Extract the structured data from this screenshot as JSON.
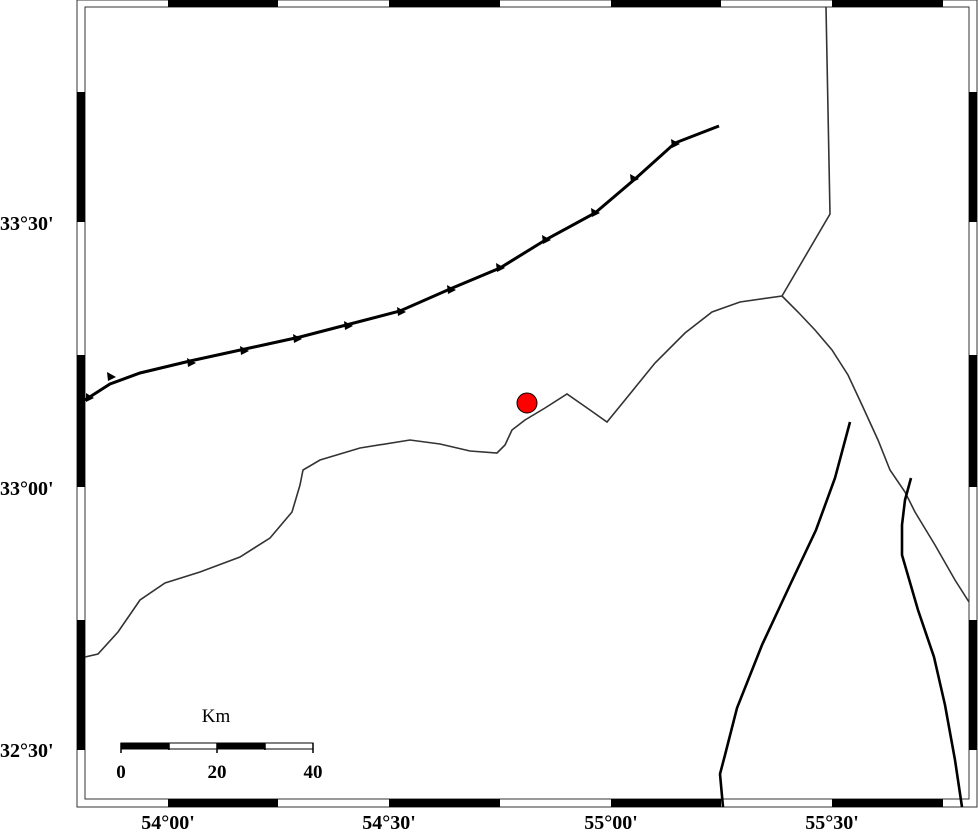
{
  "map": {
    "lat_labels": [
      "33°30'",
      "33°00'",
      "32°30'"
    ],
    "lon_labels": [
      "54°00'",
      "54°30'",
      "55°00'",
      "55°30'"
    ],
    "extent": {
      "lon": [
        53.81,
        55.81
      ],
      "lat": [
        32.41,
        33.91
      ]
    },
    "epicenter": {
      "lon": 54.81,
      "lat": 33.16,
      "color": "#ff0000"
    },
    "scale_bar": {
      "unit": "Km",
      "labels": [
        "0",
        "20",
        "40"
      ]
    },
    "colors": {
      "fault": "#000000",
      "border": "#333333",
      "frame_dark": "#000000",
      "frame_light": "#ffffff"
    }
  }
}
